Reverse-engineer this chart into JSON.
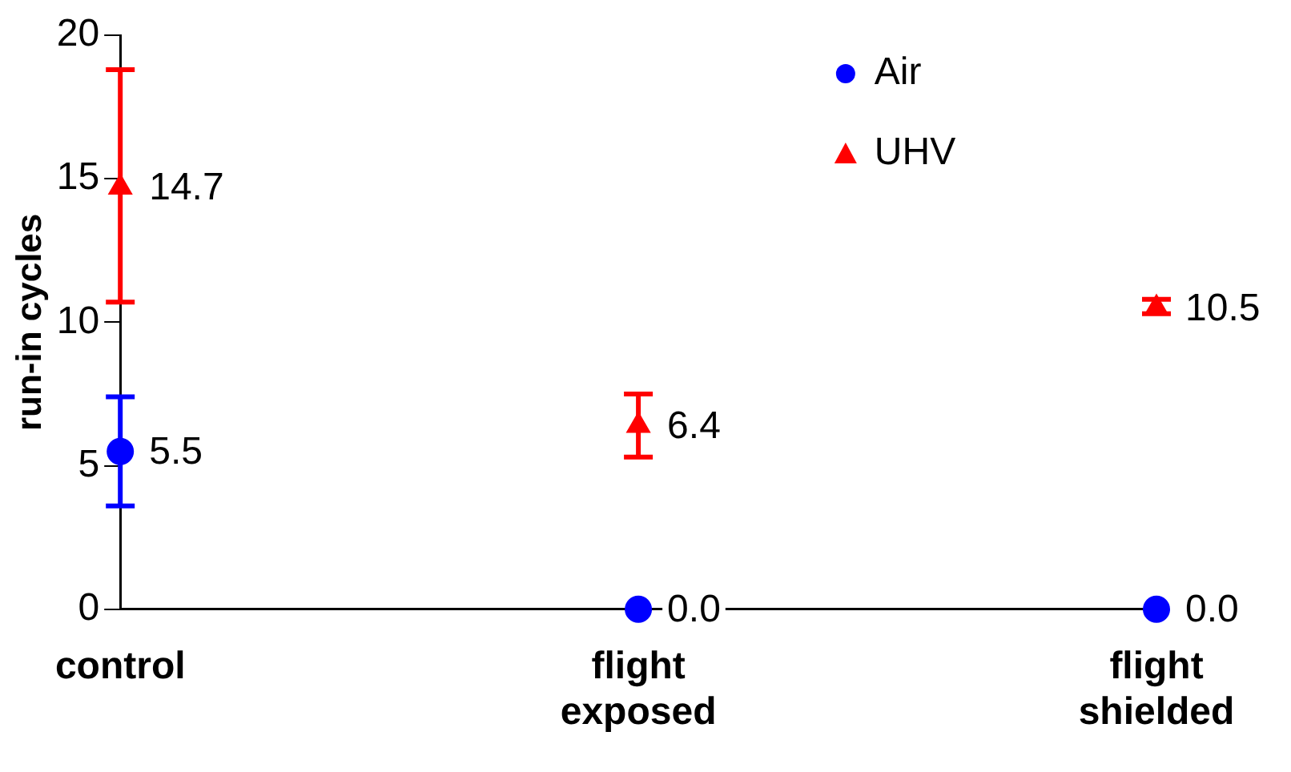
{
  "chart_data": {
    "type": "scatter",
    "ylabel": "run-in cycles",
    "categories": [
      "control",
      "flight exposed",
      "flight shielded"
    ],
    "ylim": [
      0,
      20
    ],
    "yticks": [
      0,
      5,
      10,
      15,
      20
    ],
    "grid": false,
    "legend": "top right",
    "series": [
      {
        "name": "Air",
        "color": "#0000ff",
        "marker": "circle",
        "values": [
          5.5,
          0.0,
          0.0
        ],
        "errors": [
          1.9,
          null,
          null
        ],
        "value_labels": [
          "5.5",
          "0.0",
          "0.0"
        ]
      },
      {
        "name": "UHV",
        "color": "#ff0000",
        "marker": "triangle",
        "values": [
          14.7,
          6.4,
          10.5
        ],
        "errors": [
          [
            10.7,
            18.8
          ],
          [
            5.3,
            7.5
          ],
          [
            10.3,
            10.8
          ]
        ],
        "value_labels": [
          "14.7",
          "6.4",
          "10.5"
        ]
      }
    ]
  }
}
